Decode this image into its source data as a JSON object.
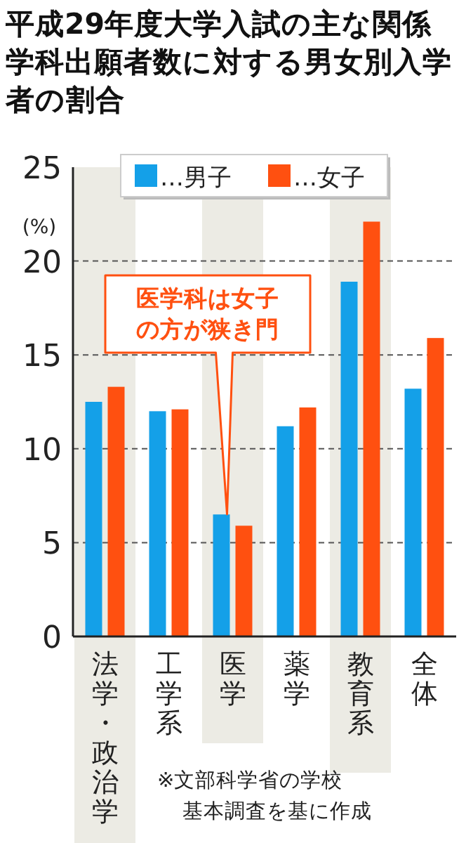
{
  "chart_data": {
    "type": "bar",
    "title": "平成29年度大学入試の主な関係学科出願者数に対する男女別入学者の割合",
    "ylabel": "(%)",
    "categories": [
      "法学・政治学",
      "工学系",
      "医学",
      "薬学",
      "教育系",
      "全体"
    ],
    "series": [
      {
        "name": "…男子",
        "color": "#14a0e8",
        "values": [
          12.5,
          12.0,
          6.5,
          11.2,
          18.9,
          13.2
        ]
      },
      {
        "name": "…女子",
        "color": "#ff5010",
        "values": [
          13.3,
          12.1,
          5.9,
          12.2,
          22.1,
          15.9
        ]
      }
    ],
    "ylim": [
      0,
      25
    ],
    "yticks": [
      0,
      5,
      10,
      15,
      20,
      25
    ],
    "grid": "y",
    "legend": "top",
    "annotations": [
      "医学科は女子の方が狭き門",
      "※文部科学省の学校基本調査を基に作成"
    ]
  }
}
